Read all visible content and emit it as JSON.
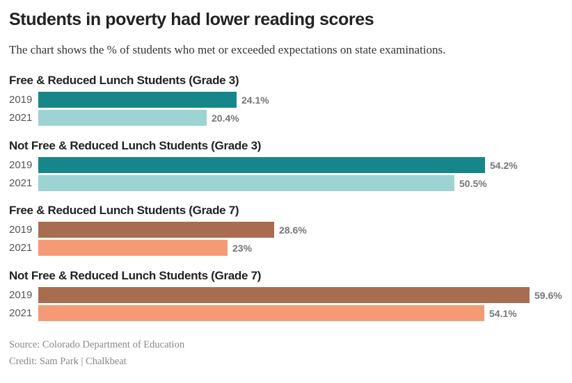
{
  "title": "Students in poverty had lower reading scores",
  "subtitle": "The chart shows the % of students who met or exceeded expectations on state examinations.",
  "source": "Source: Colorado Department of Education",
  "credit": "Credit: Sam Park | Chalkbeat",
  "colors": {
    "teal_2019": "#17868a",
    "teal_2021": "#9dd3d3",
    "brown_2019": "#a86d51",
    "salmon_2021": "#f49b76"
  },
  "chart_data": {
    "type": "bar",
    "orientation": "horizontal",
    "xlim": [
      0,
      59.6
    ],
    "groups": [
      {
        "label": "Free & Reduced Lunch Students (Grade 3)",
        "bars": [
          {
            "year": "2019",
            "value": 24.1,
            "label": "24.1%",
            "color": "#17868a"
          },
          {
            "year": "2021",
            "value": 20.4,
            "label": "20.4%",
            "color": "#9dd3d3"
          }
        ]
      },
      {
        "label": "Not Free & Reduced Lunch Students (Grade 3)",
        "bars": [
          {
            "year": "2019",
            "value": 54.2,
            "label": "54.2%",
            "color": "#17868a"
          },
          {
            "year": "2021",
            "value": 50.5,
            "label": "50.5%",
            "color": "#9dd3d3"
          }
        ]
      },
      {
        "label": "Free & Reduced Lunch Students (Grade 7)",
        "bars": [
          {
            "year": "2019",
            "value": 28.6,
            "label": "28.6%",
            "color": "#a86d51"
          },
          {
            "year": "2021",
            "value": 23,
            "label": "23%",
            "color": "#f49b76"
          }
        ]
      },
      {
        "label": "Not Free & Reduced Lunch Students (Grade 7)",
        "bars": [
          {
            "year": "2019",
            "value": 59.6,
            "label": "59.6%",
            "color": "#a86d51"
          },
          {
            "year": "2021",
            "value": 54.1,
            "label": "54.1%",
            "color": "#f49b76"
          }
        ]
      }
    ]
  }
}
